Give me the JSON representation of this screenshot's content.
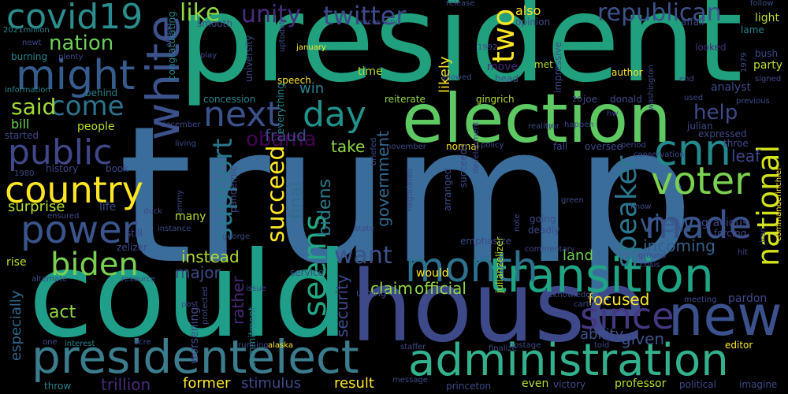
{
  "words": [
    "trump",
    "president",
    "could",
    "house",
    "election",
    "presidentelect",
    "administration",
    "transition",
    "new",
    "month",
    "white",
    "might",
    "covid19",
    "cnn",
    "voter",
    "country",
    "national",
    "public",
    "power",
    "made",
    "biden",
    "next",
    "day",
    "speaker",
    "since",
    "seems",
    "two",
    "republican",
    "twitter",
    "unity",
    "come",
    "said",
    "nation",
    "like",
    "support",
    "succeed",
    "want",
    "view",
    "obama",
    "help",
    "claim",
    "official",
    "security",
    "focused",
    "fraud",
    "government",
    "bidens",
    "final",
    "take",
    "incoming",
    "instead",
    "major",
    "rather",
    "given",
    "ability",
    "former",
    "stimulus",
    "result",
    "trillion",
    "act",
    "especially",
    "surprise",
    "people",
    "bill",
    "likely",
    "also",
    "land",
    "win",
    "time",
    "reiterate",
    "author",
    "move",
    "leaf",
    "pardon",
    "editor",
    "party",
    "light",
    "follow",
    "affair",
    "looked",
    "day",
    "gingrich",
    "joe",
    "donald",
    "speech",
    "concession",
    "everything",
    "congratulating",
    "university",
    "uptodate",
    "necessary",
    "release",
    "opinion",
    "lame",
    "impressive",
    "analyst",
    "bush",
    "newt",
    "burning",
    "plenty",
    "information",
    "2021million",
    "behind",
    "started",
    "history",
    "book",
    "life",
    "still",
    "zelizer",
    "rise",
    "alternate",
    "one",
    "interest",
    "throw",
    "post",
    "protected",
    "worsening",
    "commitment",
    "running",
    "alaska",
    "acre",
    "staffer",
    "hostage",
    "finalize",
    "told",
    "professor",
    "victory",
    "political",
    "imagine",
    "message",
    "princeton",
    "even",
    "november",
    "normal",
    "fall",
    "oversee",
    "expressed",
    "throe",
    "commanderinchief",
    "period",
    "conservation",
    "green",
    "going",
    "deadly",
    "gracious",
    "forcing",
    "know",
    "ground",
    "crisis",
    "meeting",
    "hit",
    "carter",
    "acknowledge",
    "note",
    "commentary",
    "emphasize",
    "arranged",
    "succeeds",
    "development",
    "state",
    "negotiated",
    "issue",
    "resource",
    "urging",
    "would",
    "service",
    "pandemic",
    "many",
    "jimmy",
    "1980",
    "ensured",
    "duck",
    "instance",
    "george",
    "december",
    "living",
    "reality",
    "happen",
    "policy",
    "briefed",
    "previous",
    "signed",
    "end",
    "washington",
    "used",
    "hw",
    "julian",
    "julianzelizer",
    "allowed",
    "head",
    "met",
    "1992",
    "january",
    "smooth",
    "play",
    "20",
    "mr",
    "iran",
    "1979",
    "ahead"
  ],
  "colors": {
    "background": "#000000",
    "palette": [
      "#440154",
      "#482878",
      "#3e4989",
      "#31688e",
      "#26828e",
      "#1f9e89",
      "#35b779",
      "#6ece58",
      "#b5de2b",
      "#fde725"
    ]
  }
}
